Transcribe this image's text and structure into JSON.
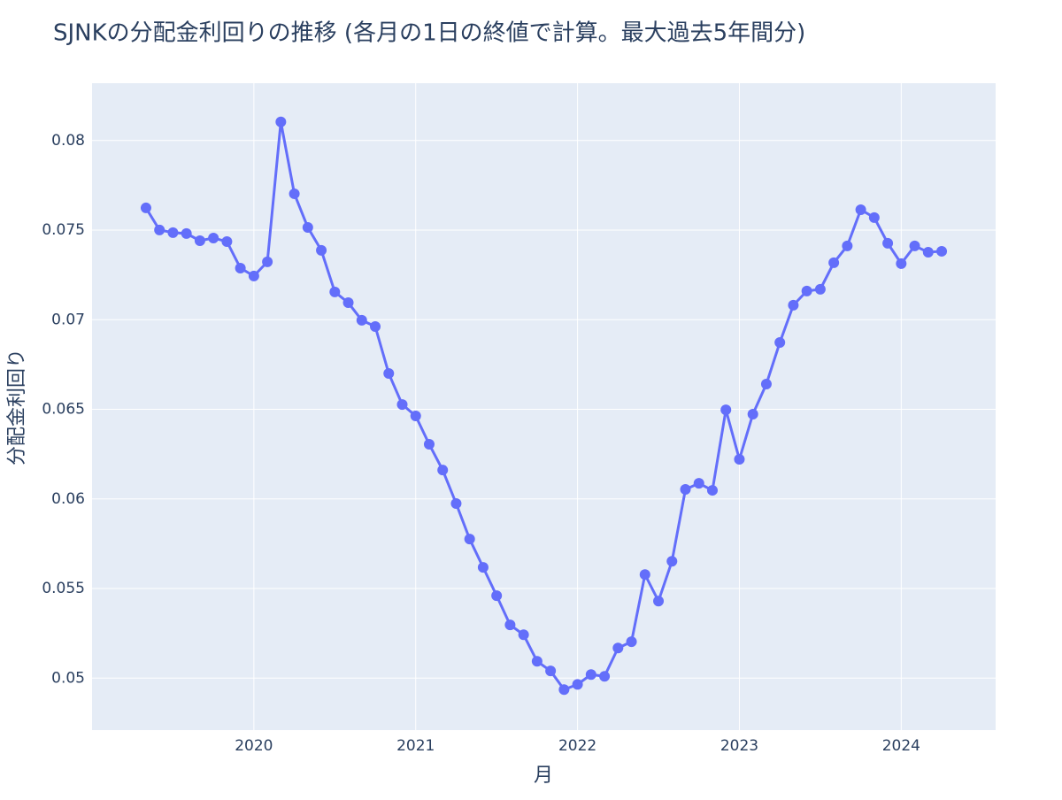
{
  "chart_data": {
    "type": "line",
    "title": "SJNKの分配金利回りの推移 (各月の1日の終値で計算。最大過去5年間分)",
    "x_label": "月",
    "y_label": "分配金利回り",
    "x": [
      "2019-05",
      "2019-06",
      "2019-07",
      "2019-08",
      "2019-09",
      "2019-10",
      "2019-11",
      "2019-12",
      "2020-01",
      "2020-02",
      "2020-03",
      "2020-04",
      "2020-05",
      "2020-06",
      "2020-07",
      "2020-08",
      "2020-09",
      "2020-10",
      "2020-11",
      "2020-12",
      "2021-01",
      "2021-02",
      "2021-03",
      "2021-04",
      "2021-05",
      "2021-06",
      "2021-07",
      "2021-08",
      "2021-09",
      "2021-10",
      "2021-11",
      "2021-12",
      "2022-01",
      "2022-02",
      "2022-03",
      "2022-04",
      "2022-05",
      "2022-06",
      "2022-07",
      "2022-08",
      "2022-09",
      "2022-10",
      "2022-11",
      "2022-12",
      "2023-01",
      "2023-02",
      "2023-03",
      "2023-04",
      "2023-05",
      "2023-06",
      "2023-07",
      "2023-08",
      "2023-09",
      "2023-10",
      "2023-11",
      "2023-12",
      "2024-01",
      "2024-02",
      "2024-03",
      "2024-04"
    ],
    "series": [
      {
        "name": "分配金利回り",
        "color": "#636efa",
        "values": [
          0.07624,
          0.07501,
          0.07486,
          0.07481,
          0.07441,
          0.07456,
          0.07436,
          0.07288,
          0.07244,
          0.07323,
          0.08104,
          0.07703,
          0.07515,
          0.07387,
          0.07155,
          0.07095,
          0.06997,
          0.06962,
          0.067,
          0.06527,
          0.06463,
          0.06305,
          0.06161,
          0.05974,
          0.05776,
          0.05618,
          0.0546,
          0.05297,
          0.05242,
          0.05094,
          0.0504,
          0.04936,
          0.04965,
          0.0502,
          0.0501,
          0.05168,
          0.05203,
          0.05578,
          0.0543,
          0.05652,
          0.06053,
          0.06087,
          0.06048,
          0.06497,
          0.06221,
          0.06473,
          0.06641,
          0.06873,
          0.07081,
          0.0716,
          0.0717,
          0.07318,
          0.07412,
          0.07614,
          0.0757,
          0.07427,
          0.07313,
          0.07412,
          0.07377,
          0.07382
        ]
      }
    ],
    "xlim": [
      "2019-01",
      "2024-08"
    ],
    "xticks": [
      {
        "value": "2020-01",
        "label": "2020"
      },
      {
        "value": "2021-01",
        "label": "2021"
      },
      {
        "value": "2022-01",
        "label": "2022"
      },
      {
        "value": "2023-01",
        "label": "2023"
      },
      {
        "value": "2024-01",
        "label": "2024"
      }
    ],
    "ylim": [
      0.0471,
      0.0832
    ],
    "yticks": [
      0.05,
      0.055,
      0.06,
      0.065,
      0.07,
      0.075,
      0.08
    ],
    "grid": true
  }
}
